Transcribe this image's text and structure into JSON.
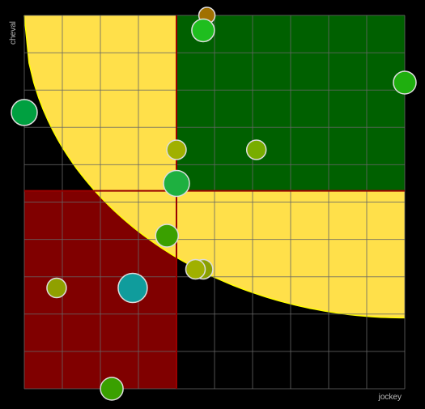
{
  "chart_data": {
    "type": "scatter",
    "xlabel": "jockey",
    "ylabel": "cheval",
    "xlim": [
      0,
      10
    ],
    "ylim": [
      0,
      10
    ],
    "grid": true,
    "quadrant_split": {
      "x": 4,
      "y": 5.3
    },
    "colors": {
      "background": "#000000",
      "grid": "#666666",
      "zone_top_right": "#006000",
      "zone_bottom_left": "#800000",
      "curve_fill": "#ffe04a",
      "curve_stroke": "#ffff00",
      "split_line": "#990000",
      "marker_stroke": "#dddddd"
    },
    "curve": {
      "description_free": true,
      "a": 0,
      "b": 10,
      "c": 10,
      "y_at_right": 1.9
    },
    "points": [
      {
        "x": 4.8,
        "y": 10.0,
        "size": 10,
        "color": "#a07000"
      },
      {
        "x": 4.7,
        "y": 9.6,
        "size": 14,
        "color": "#1fbe1f"
      },
      {
        "x": 10.0,
        "y": 8.2,
        "size": 14,
        "color": "#1faf0f"
      },
      {
        "x": 0.0,
        "y": 7.4,
        "size": 16,
        "color": "#00a040"
      },
      {
        "x": 4.0,
        "y": 6.4,
        "size": 12,
        "color": "#a0b000"
      },
      {
        "x": 6.1,
        "y": 6.4,
        "size": 12,
        "color": "#78ad00"
      },
      {
        "x": 4.0,
        "y": 5.5,
        "size": 16,
        "color": "#1eb040"
      },
      {
        "x": 3.75,
        "y": 4.1,
        "size": 14,
        "color": "#3aa000"
      },
      {
        "x": 4.7,
        "y": 3.2,
        "size": 12,
        "color": "#8aa000"
      },
      {
        "x": 4.5,
        "y": 3.2,
        "size": 12,
        "color": "#a0b000"
      },
      {
        "x": 0.85,
        "y": 2.7,
        "size": 12,
        "color": "#90a000"
      },
      {
        "x": 2.85,
        "y": 2.7,
        "size": 18,
        "color": "#109c9c"
      },
      {
        "x": 2.3,
        "y": 0.0,
        "size": 14,
        "color": "#3aa000"
      }
    ]
  }
}
